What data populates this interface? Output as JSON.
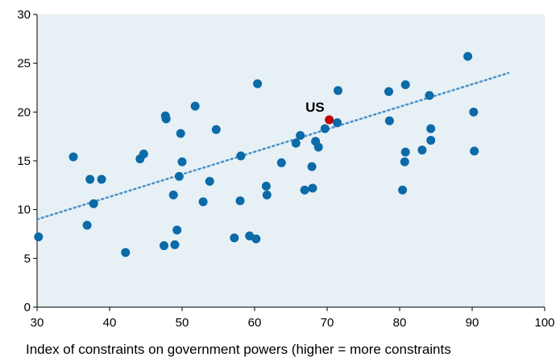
{
  "chart_data": {
    "type": "scatter",
    "title": "",
    "xlabel": "Index of constraints on government powers (higher = more constraints",
    "ylabel": "",
    "xlim": [
      30,
      100
    ],
    "ylim": [
      0,
      30
    ],
    "x_ticks": [
      "30",
      "40",
      "50",
      "60",
      "70",
      "80",
      "90",
      "100"
    ],
    "y_ticks": [
      "0",
      "5",
      "10",
      "15",
      "20",
      "25",
      "30"
    ],
    "grid": false,
    "legend": "none",
    "colors": {
      "plot_background": "#E6F0F5",
      "points": "#0B6AA8",
      "highlight": "#C00000",
      "trendline": "#4A90C8"
    },
    "series": [
      {
        "name": "",
        "points": [
          [
            30.2,
            7.2
          ],
          [
            35.0,
            15.4
          ],
          [
            36.9,
            8.4
          ],
          [
            37.3,
            13.1
          ],
          [
            37.8,
            10.6
          ],
          [
            38.9,
            13.1
          ],
          [
            42.2,
            5.6
          ],
          [
            44.2,
            15.2
          ],
          [
            44.7,
            15.7
          ],
          [
            47.5,
            6.3
          ],
          [
            47.7,
            19.6
          ],
          [
            47.8,
            19.3
          ],
          [
            48.8,
            11.5
          ],
          [
            49.0,
            6.4
          ],
          [
            49.3,
            7.9
          ],
          [
            49.6,
            13.4
          ],
          [
            49.8,
            17.8
          ],
          [
            50.0,
            14.9
          ],
          [
            51.8,
            20.6
          ],
          [
            52.9,
            10.8
          ],
          [
            53.8,
            12.9
          ],
          [
            54.7,
            18.2
          ],
          [
            57.2,
            7.1
          ],
          [
            58.0,
            10.9
          ],
          [
            58.1,
            15.5
          ],
          [
            59.3,
            7.3
          ],
          [
            60.2,
            7.0
          ],
          [
            60.4,
            22.9
          ],
          [
            61.6,
            12.4
          ],
          [
            61.7,
            11.5
          ],
          [
            63.7,
            14.8
          ],
          [
            65.7,
            16.8
          ],
          [
            66.3,
            17.6
          ],
          [
            66.9,
            12.0
          ],
          [
            67.9,
            14.4
          ],
          [
            68.0,
            12.2
          ],
          [
            68.4,
            17.0
          ],
          [
            68.8,
            16.4
          ],
          [
            69.7,
            18.3
          ],
          [
            71.4,
            18.9
          ],
          [
            71.5,
            22.2
          ],
          [
            78.5,
            22.1
          ],
          [
            78.6,
            19.1
          ],
          [
            80.4,
            12.0
          ],
          [
            80.7,
            14.9
          ],
          [
            80.8,
            15.9
          ],
          [
            80.8,
            22.8
          ],
          [
            83.1,
            16.1
          ],
          [
            84.1,
            21.7
          ],
          [
            84.3,
            18.3
          ],
          [
            84.3,
            17.1
          ],
          [
            89.4,
            25.7
          ],
          [
            90.2,
            20.0
          ],
          [
            90.3,
            16.0
          ]
        ]
      }
    ],
    "highlight": {
      "label": "US",
      "x": 70.3,
      "y": 19.2
    },
    "trendline": {
      "style": "dotted",
      "x": [
        30,
        95
      ],
      "y": [
        9.0,
        24.0
      ]
    }
  }
}
